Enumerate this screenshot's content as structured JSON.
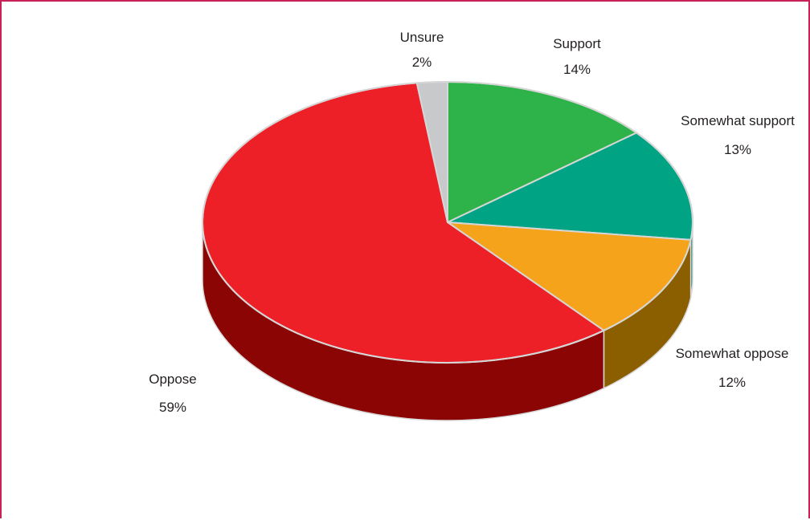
{
  "chart_data": {
    "type": "pie",
    "slices": [
      {
        "label": "Support",
        "value": 14,
        "value_label": "14%",
        "color": "#2db34a",
        "side_color": "#1a7a2e"
      },
      {
        "label": "Somewhat support",
        "value": 13,
        "value_label": "13%",
        "color": "#00a383",
        "side_color": "#006b55"
      },
      {
        "label": "Somewhat oppose",
        "value": 12,
        "value_label": "12%",
        "color": "#f5a31a",
        "side_color": "#8b5e00"
      },
      {
        "label": "Oppose",
        "value": 59,
        "value_label": "59%",
        "color": "#ed1f27",
        "side_color": "#8b0505"
      },
      {
        "label": "Unsure",
        "value": 2,
        "value_label": "2%",
        "color": "#c8c9cb",
        "side_color": "#8a8b8d"
      }
    ],
    "start": "12 o'clock, clockwise",
    "style": "3D tilted pie",
    "legend": "none (labels beside slices)"
  }
}
